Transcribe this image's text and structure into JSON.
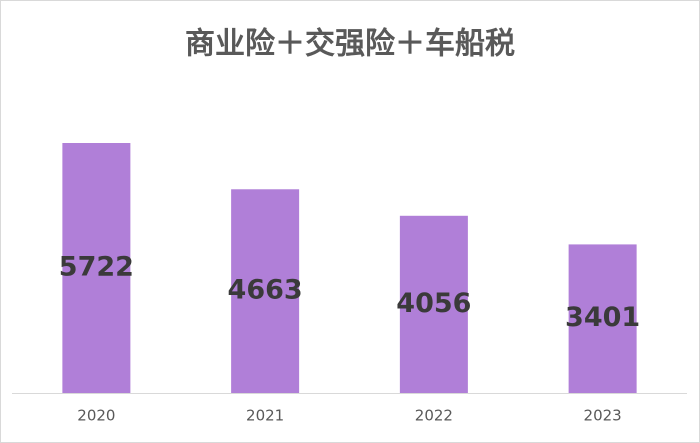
{
  "chart_data": {
    "type": "bar",
    "title": "商业险＋交强险＋车船税",
    "categories": [
      "2020",
      "2021",
      "2022",
      "2023"
    ],
    "values": [
      5722,
      4663,
      4056,
      3401
    ],
    "color": "#b07fd8"
  }
}
